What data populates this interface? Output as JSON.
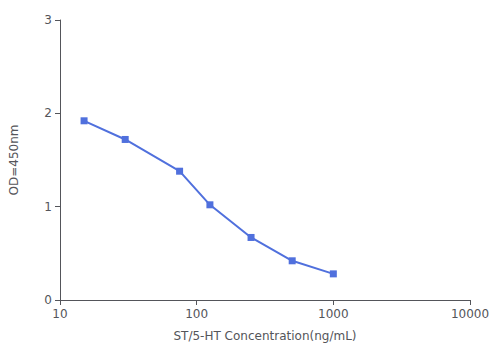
{
  "chart_data": {
    "type": "line",
    "x": [
      15,
      30,
      75,
      125,
      250,
      500,
      1000
    ],
    "values": [
      1.92,
      1.72,
      1.38,
      1.02,
      0.67,
      0.42,
      0.28
    ],
    "xlabel": "ST/5-HT Concentration(ng/mL)",
    "ylabel": "OD=450nm",
    "xlim": [
      10,
      10000
    ],
    "ylim": [
      0,
      3
    ],
    "xticks": [
      10,
      100,
      1000,
      10000
    ],
    "yticks": [
      0,
      1,
      2,
      3
    ],
    "log": "x",
    "marker": "square",
    "grid": false
  }
}
